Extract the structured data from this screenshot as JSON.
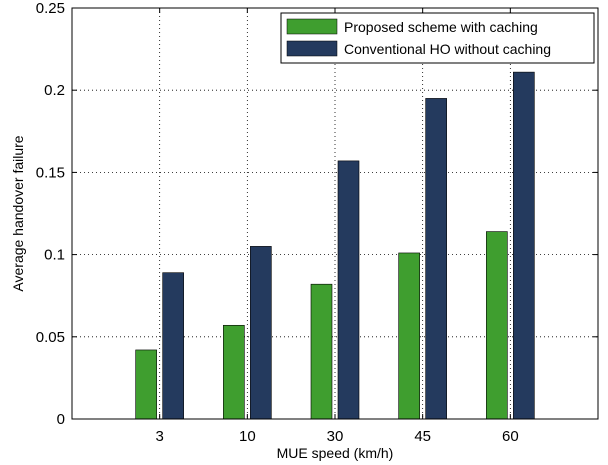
{
  "chart_data": {
    "type": "bar",
    "xlabel": "MUE speed (km/h)",
    "ylabel": "Average handover failure",
    "categories": [
      "3",
      "10",
      "30",
      "45",
      "60"
    ],
    "series": [
      {
        "name": "Proposed scheme with caching",
        "values": [
          0.042,
          0.057,
          0.082,
          0.101,
          0.114
        ],
        "color": "#3f9e2f"
      },
      {
        "name": "Conventional HO without caching",
        "values": [
          0.089,
          0.105,
          0.157,
          0.195,
          0.211
        ],
        "color": "#243a5e"
      }
    ],
    "ylim": [
      0,
      0.25
    ],
    "yticks": [
      "0",
      "0.05",
      "0.1",
      "0.15",
      "0.2",
      "0.25"
    ],
    "ytick_values": [
      0,
      0.05,
      0.1,
      0.15,
      0.2,
      0.25
    ],
    "grid": true,
    "legend_position": "top-right"
  }
}
